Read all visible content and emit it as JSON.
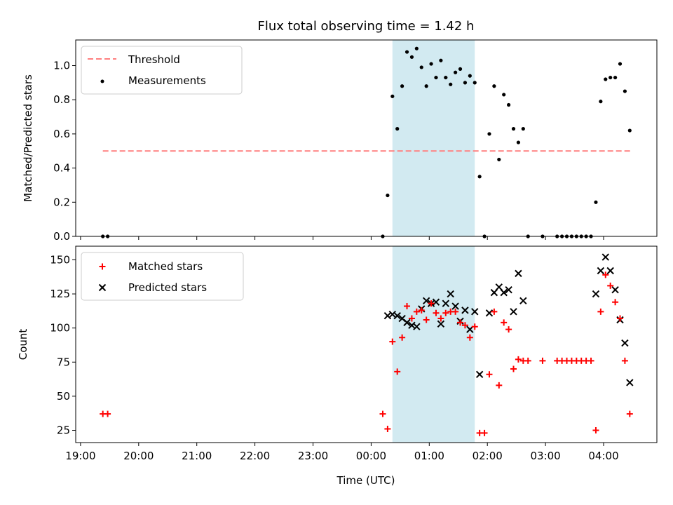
{
  "title": "Flux total observing time = 1.42 h",
  "colors": {
    "threshold": "#ff7f7f",
    "measurement": "#000000",
    "matched": "#ff0000",
    "predicted": "#000000",
    "span": "#add8e6"
  },
  "chart_data": [
    {
      "type": "scatter",
      "ylabel": "Matched/Predicted stars",
      "xlim": [
        "18:55",
        "23:55+5:00"
      ],
      "ylim": [
        0,
        1.15
      ],
      "yticks": [
        0.0,
        0.2,
        0.4,
        0.6,
        0.8,
        1.0
      ],
      "ytick_labels": [
        "0.0",
        "0.2",
        "0.4",
        "0.6",
        "0.8",
        "1.0"
      ],
      "legend_position": "upper left",
      "shaded_span": [
        "00:22",
        "01:47"
      ],
      "threshold": {
        "name": "Threshold",
        "value": 0.5,
        "x_range": [
          "19:23",
          "04:29"
        ]
      },
      "series": [
        {
          "name": "Measurements",
          "points": [
            [
              "19:23",
              0.0
            ],
            [
              "19:28",
              0.0
            ],
            [
              "00:12",
              0.0
            ],
            [
              "00:17",
              0.24
            ],
            [
              "00:22",
              0.82
            ],
            [
              "00:27",
              0.63
            ],
            [
              "00:32",
              0.88
            ],
            [
              "00:37",
              1.08
            ],
            [
              "00:42",
              1.05
            ],
            [
              "00:47",
              1.1
            ],
            [
              "00:52",
              0.99
            ],
            [
              "00:57",
              0.88
            ],
            [
              "01:02",
              1.01
            ],
            [
              "01:07",
              0.93
            ],
            [
              "01:12",
              1.03
            ],
            [
              "01:17",
              0.93
            ],
            [
              "01:22",
              0.89
            ],
            [
              "01:27",
              0.96
            ],
            [
              "01:32",
              0.98
            ],
            [
              "01:37",
              0.9
            ],
            [
              "01:42",
              0.94
            ],
            [
              "01:47",
              0.9
            ],
            [
              "01:52",
              0.35
            ],
            [
              "01:57",
              0.0
            ],
            [
              "02:02",
              0.6
            ],
            [
              "02:07",
              0.88
            ],
            [
              "02:12",
              0.45
            ],
            [
              "02:17",
              0.83
            ],
            [
              "02:22",
              0.77
            ],
            [
              "02:27",
              0.63
            ],
            [
              "02:32",
              0.55
            ],
            [
              "02:37",
              0.63
            ],
            [
              "02:42",
              0.0
            ],
            [
              "02:57",
              0.0
            ],
            [
              "03:12",
              0.0
            ],
            [
              "03:17",
              0.0
            ],
            [
              "03:22",
              0.0
            ],
            [
              "03:27",
              0.0
            ],
            [
              "03:32",
              0.0
            ],
            [
              "03:37",
              0.0
            ],
            [
              "03:42",
              0.0
            ],
            [
              "03:47",
              0.0
            ],
            [
              "03:52",
              0.2
            ],
            [
              "03:57",
              0.79
            ],
            [
              "04:02",
              0.92
            ],
            [
              "04:07",
              0.93
            ],
            [
              "04:12",
              0.93
            ],
            [
              "04:17",
              1.01
            ],
            [
              "04:22",
              0.85
            ],
            [
              "04:27",
              0.62
            ]
          ]
        }
      ]
    },
    {
      "type": "scatter",
      "ylabel": "Count",
      "xlabel": "Time (UTC)",
      "xlim": [
        "18:55",
        "23:55+5:00"
      ],
      "ylim": [
        16,
        160
      ],
      "yticks": [
        25,
        50,
        75,
        100,
        125,
        150
      ],
      "xticks": [
        "19:00",
        "20:00",
        "21:00",
        "22:00",
        "23:00",
        "00:00",
        "01:00",
        "02:00",
        "03:00",
        "04:00"
      ],
      "legend_position": "upper left",
      "shaded_span": [
        "00:22",
        "01:47"
      ],
      "series": [
        {
          "name": "Matched stars",
          "marker": "plus",
          "points": [
            [
              "19:23",
              37
            ],
            [
              "19:28",
              37
            ],
            [
              "00:12",
              37
            ],
            [
              "00:17",
              26
            ],
            [
              "00:22",
              90
            ],
            [
              "00:27",
              68
            ],
            [
              "00:32",
              93
            ],
            [
              "00:37",
              116
            ],
            [
              "00:42",
              107
            ],
            [
              "00:47",
              112
            ],
            [
              "00:52",
              113
            ],
            [
              "00:57",
              106
            ],
            [
              "01:02",
              118
            ],
            [
              "01:07",
              111
            ],
            [
              "01:12",
              107
            ],
            [
              "01:17",
              111
            ],
            [
              "01:22",
              112
            ],
            [
              "01:27",
              112
            ],
            [
              "01:32",
              104
            ],
            [
              "01:37",
              102
            ],
            [
              "01:42",
              93
            ],
            [
              "01:47",
              101
            ],
            [
              "01:52",
              23
            ],
            [
              "01:57",
              23
            ],
            [
              "02:02",
              66
            ],
            [
              "02:07",
              112
            ],
            [
              "02:12",
              58
            ],
            [
              "02:17",
              104
            ],
            [
              "02:22",
              99
            ],
            [
              "02:27",
              70
            ],
            [
              "02:32",
              77
            ],
            [
              "02:37",
              76
            ],
            [
              "02:42",
              76
            ],
            [
              "02:57",
              76
            ],
            [
              "03:12",
              76
            ],
            [
              "03:17",
              76
            ],
            [
              "03:22",
              76
            ],
            [
              "03:27",
              76
            ],
            [
              "03:32",
              76
            ],
            [
              "03:37",
              76
            ],
            [
              "03:42",
              76
            ],
            [
              "03:47",
              76
            ],
            [
              "03:52",
              25
            ],
            [
              "03:57",
              112
            ],
            [
              "04:02",
              139
            ],
            [
              "04:07",
              131
            ],
            [
              "04:12",
              119
            ],
            [
              "04:17",
              107
            ],
            [
              "04:22",
              76
            ],
            [
              "04:27",
              37
            ]
          ]
        },
        {
          "name": "Predicted stars",
          "marker": "x",
          "points": [
            [
              "00:17",
              109
            ],
            [
              "00:22",
              110
            ],
            [
              "00:27",
              109
            ],
            [
              "00:32",
              107
            ],
            [
              "00:37",
              104
            ],
            [
              "00:42",
              102
            ],
            [
              "00:47",
              101
            ],
            [
              "00:52",
              114
            ],
            [
              "00:57",
              120
            ],
            [
              "01:02",
              118
            ],
            [
              "01:07",
              119
            ],
            [
              "01:12",
              103
            ],
            [
              "01:17",
              118
            ],
            [
              "01:22",
              125
            ],
            [
              "01:27",
              116
            ],
            [
              "01:32",
              105
            ],
            [
              "01:37",
              113
            ],
            [
              "01:42",
              99
            ],
            [
              "01:47",
              112
            ],
            [
              "01:52",
              66
            ],
            [
              "02:02",
              111
            ],
            [
              "02:07",
              126
            ],
            [
              "02:12",
              130
            ],
            [
              "02:17",
              126
            ],
            [
              "02:22",
              128
            ],
            [
              "02:27",
              112
            ],
            [
              "02:32",
              140
            ],
            [
              "02:37",
              120
            ],
            [
              "03:52",
              125
            ],
            [
              "03:57",
              142
            ],
            [
              "04:02",
              152
            ],
            [
              "04:07",
              142
            ],
            [
              "04:12",
              128
            ],
            [
              "04:17",
              106
            ],
            [
              "04:22",
              89
            ],
            [
              "04:27",
              60
            ]
          ]
        }
      ]
    }
  ]
}
